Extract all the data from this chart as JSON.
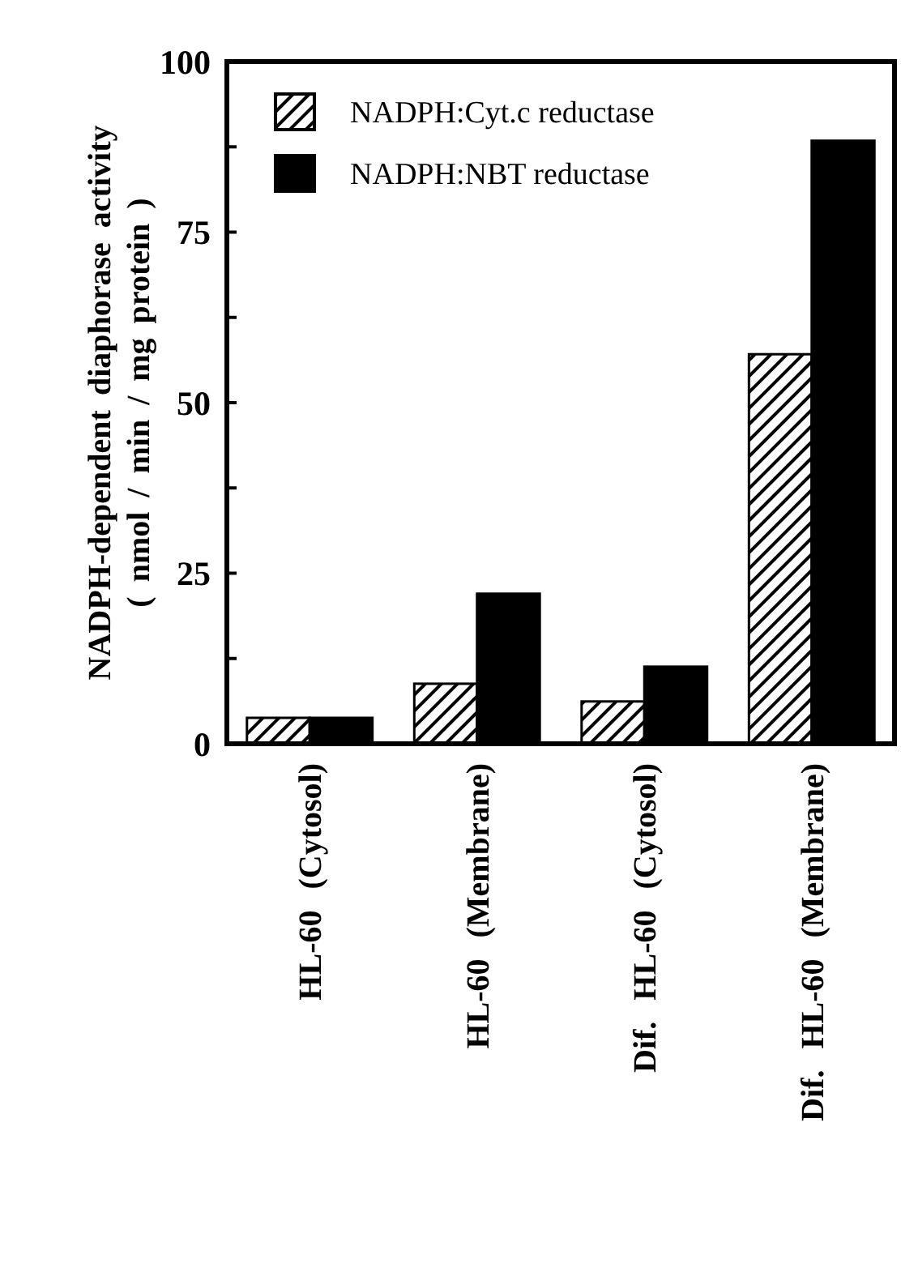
{
  "chart_data": {
    "type": "bar",
    "ylabel": "NADPH-dependent diaphorase activity\n( nmol / min / mg protein )",
    "categories": [
      "HL-60 (Cytosol)",
      "HL-60 (Membrane)",
      "Dif. HL-60 (Cytosol)",
      "Dif. HL-60 (Membrane)"
    ],
    "series": [
      {
        "name": "NADPH:Cyt.c reductase",
        "color": "#000000",
        "values": [
          3.8,
          8.8,
          6.2,
          57.1
        ]
      },
      {
        "name": "NADPH:NBT reductase",
        "color": "#000000",
        "values": [
          3.8,
          22.0,
          11.3,
          88.4
        ]
      }
    ],
    "ylim": [
      0,
      100
    ],
    "yticks": [
      0,
      {
        "value": 12.5,
        "label": null
      },
      25,
      {
        "value": 37.5,
        "label": null
      },
      50,
      {
        "value": 62.5,
        "label": null
      },
      75,
      {
        "value": 87.5,
        "label": null
      },
      100
    ],
    "legend": "top left",
    "grid": false
  }
}
